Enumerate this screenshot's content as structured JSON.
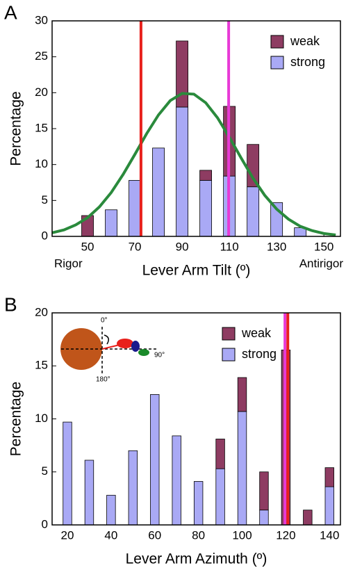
{
  "chart_data": [
    {
      "type": "bar",
      "panel": "A",
      "stacked": true,
      "categories": [
        50,
        60,
        70,
        80,
        90,
        100,
        110,
        120,
        130,
        140
      ],
      "series": [
        {
          "name": "weak",
          "color": "#8e3c62",
          "values": [
            2.9,
            0,
            0,
            0,
            9.2,
            1.4,
            9.7,
            5.9,
            0,
            0
          ]
        },
        {
          "name": "strong",
          "color": "#a9a9f5",
          "values": [
            0,
            3.7,
            7.8,
            12.3,
            18,
            7.8,
            8.4,
            6.9,
            4.7,
            1.2
          ]
        }
      ],
      "fit": {
        "color": "#2a8a3c",
        "x": [
          35,
          40,
          45,
          50,
          55,
          60,
          65,
          70,
          75,
          80,
          85,
          90,
          95,
          100,
          105,
          110,
          115,
          120,
          125,
          130,
          135,
          140,
          145,
          150,
          155
        ],
        "y": [
          0.5,
          0.9,
          1.6,
          2.6,
          4.1,
          6.1,
          8.6,
          11.4,
          14.3,
          16.9,
          18.9,
          19.9,
          19.8,
          18.6,
          16.5,
          13.8,
          10.9,
          8.1,
          5.7,
          3.8,
          2.4,
          1.4,
          0.8,
          0.4,
          0.2
        ]
      },
      "vlines": [
        {
          "x": 72.6,
          "color": "#e8201c"
        },
        {
          "x": 109.7,
          "color": "#e83ad6"
        }
      ],
      "xlabel": "Lever Arm Tilt (º)",
      "ylabel": "Percentage",
      "annotations": [
        "Rigor",
        "Antirigor"
      ],
      "xlim": [
        35,
        157
      ],
      "ylim": [
        0,
        30
      ],
      "xticks": [
        50,
        70,
        90,
        110,
        130,
        150
      ],
      "yticks": [
        0,
        5,
        10,
        15,
        20,
        25,
        30
      ]
    },
    {
      "type": "bar",
      "panel": "B",
      "stacked": true,
      "categories": [
        20,
        30,
        40,
        50,
        60,
        70,
        80,
        90,
        100,
        110,
        120,
        130,
        140
      ],
      "series": [
        {
          "name": "weak",
          "color": "#8e3c62",
          "values": [
            0,
            0,
            0,
            0,
            0,
            0,
            0,
            2.8,
            3.2,
            3.6,
            16.5,
            1.4,
            1.8
          ]
        },
        {
          "name": "strong",
          "color": "#a9a9f5",
          "values": [
            9.7,
            6.1,
            2.8,
            7.0,
            12.3,
            8.4,
            4.1,
            5.3,
            10.7,
            1.4,
            0,
            0,
            3.6
          ]
        }
      ],
      "vlines": [
        {
          "x": 119.6,
          "color": "#e83ad6"
        },
        {
          "x": 120.9,
          "color": "#e8201c"
        }
      ],
      "xlabel": "Lever Arm Azimuth (º)",
      "ylabel": "Percentage",
      "inset_labels": [
        "0°",
        "90°",
        "180°"
      ],
      "xlim": [
        13,
        145
      ],
      "ylim": [
        0,
        20
      ],
      "xticks": [
        20,
        40,
        60,
        80,
        100,
        120,
        140
      ],
      "yticks": [
        0,
        5,
        10,
        15,
        20
      ]
    }
  ]
}
